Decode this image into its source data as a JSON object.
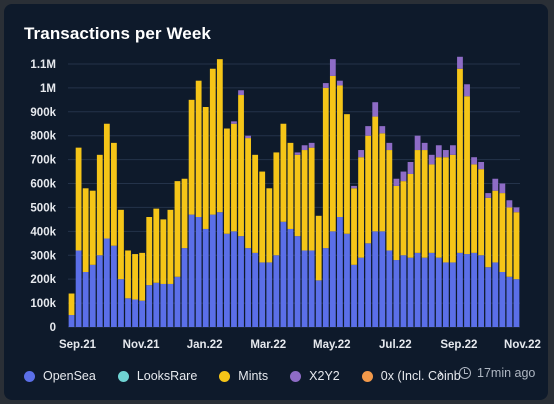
{
  "chart_data": {
    "type": "bar",
    "stacked": true,
    "title": "Transactions per Week",
    "xlabel": "",
    "ylabel": "",
    "ylim": [
      0,
      1150000
    ],
    "y_ticks": [
      {
        "value": 0,
        "label": "0"
      },
      {
        "value": 100000,
        "label": "100k"
      },
      {
        "value": 200000,
        "label": "200k"
      },
      {
        "value": 300000,
        "label": "300k"
      },
      {
        "value": 400000,
        "label": "400k"
      },
      {
        "value": 500000,
        "label": "500k"
      },
      {
        "value": 600000,
        "label": "600k"
      },
      {
        "value": 700000,
        "label": "700k"
      },
      {
        "value": 800000,
        "label": "800k"
      },
      {
        "value": 900000,
        "label": "900k"
      },
      {
        "value": 1000000,
        "label": "1M"
      },
      {
        "value": 1100000,
        "label": "1.1M"
      }
    ],
    "x_ticks": [
      {
        "index": 0,
        "label": "Sep.21"
      },
      {
        "index": 9,
        "label": "Nov.21"
      },
      {
        "index": 18,
        "label": "Jan.22"
      },
      {
        "index": 27,
        "label": "Mar.22"
      },
      {
        "index": 36,
        "label": "May.22"
      },
      {
        "index": 45,
        "label": "Jul.22"
      },
      {
        "index": 54,
        "label": "Sep.22"
      },
      {
        "index": 63,
        "label": "Nov.22"
      }
    ],
    "grid": true,
    "legend_position": "bottom",
    "series": [
      {
        "name": "OpenSea",
        "color": "#5b6fe8",
        "values": [
          50000,
          320000,
          230000,
          260000,
          300000,
          370000,
          340000,
          200000,
          120000,
          115000,
          110000,
          175000,
          185000,
          180000,
          180000,
          210000,
          330000,
          470000,
          460000,
          410000,
          470000,
          480000,
          390000,
          400000,
          380000,
          330000,
          310000,
          270000,
          270000,
          300000,
          440000,
          410000,
          380000,
          320000,
          320000,
          195000,
          330000,
          400000,
          460000,
          390000,
          260000,
          290000,
          350000,
          400000,
          400000,
          320000,
          280000,
          300000,
          290000,
          310000,
          290000,
          310000,
          290000,
          270000,
          270000,
          310000,
          305000,
          310000,
          300000,
          250000,
          270000,
          230000,
          210000,
          200000
        ]
      },
      {
        "name": "LooksRare",
        "color": "#6fd3d3",
        "values": [
          0,
          0,
          0,
          0,
          0,
          0,
          0,
          0,
          0,
          0,
          0,
          0,
          0,
          0,
          0,
          0,
          0,
          0,
          0,
          0,
          0,
          0,
          0,
          0,
          0,
          0,
          0,
          0,
          0,
          0,
          0,
          0,
          0,
          0,
          0,
          0,
          0,
          0,
          0,
          0,
          0,
          0,
          0,
          0,
          0,
          0,
          0,
          0,
          0,
          0,
          0,
          0,
          0,
          0,
          0,
          0,
          0,
          0,
          0,
          0,
          0,
          0,
          0,
          0
        ]
      },
      {
        "name": "Mints",
        "color": "#f5c518",
        "values": [
          90000,
          430000,
          350000,
          310000,
          420000,
          480000,
          430000,
          290000,
          200000,
          190000,
          200000,
          285000,
          310000,
          270000,
          310000,
          400000,
          290000,
          480000,
          570000,
          510000,
          610000,
          640000,
          440000,
          450000,
          590000,
          460000,
          410000,
          380000,
          310000,
          430000,
          410000,
          360000,
          340000,
          420000,
          430000,
          270000,
          670000,
          650000,
          550000,
          500000,
          320000,
          420000,
          450000,
          480000,
          410000,
          420000,
          310000,
          310000,
          350000,
          430000,
          450000,
          370000,
          420000,
          440000,
          450000,
          770000,
          660000,
          370000,
          360000,
          290000,
          300000,
          330000,
          290000,
          280000
        ]
      },
      {
        "name": "X2Y2",
        "color": "#8e6cc6",
        "values": [
          0,
          0,
          0,
          0,
          0,
          0,
          0,
          0,
          0,
          0,
          0,
          0,
          0,
          0,
          0,
          0,
          0,
          0,
          0,
          0,
          0,
          0,
          0,
          10000,
          20000,
          10000,
          0,
          0,
          0,
          0,
          0,
          0,
          10000,
          20000,
          20000,
          0,
          20000,
          70000,
          20000,
          0,
          10000,
          30000,
          40000,
          60000,
          30000,
          30000,
          30000,
          40000,
          50000,
          60000,
          30000,
          40000,
          50000,
          30000,
          40000,
          50000,
          50000,
          30000,
          30000,
          20000,
          50000,
          40000,
          30000,
          20000
        ]
      },
      {
        "name": "0x (Incl. Coinbase)",
        "color": "#f2994a",
        "values": [
          0,
          0,
          0,
          0,
          0,
          0,
          0,
          0,
          0,
          0,
          0,
          0,
          0,
          0,
          0,
          0,
          0,
          0,
          0,
          0,
          0,
          0,
          0,
          0,
          0,
          0,
          0,
          0,
          0,
          0,
          0,
          0,
          0,
          0,
          0,
          0,
          0,
          0,
          0,
          0,
          0,
          0,
          0,
          0,
          0,
          0,
          0,
          0,
          0,
          0,
          0,
          0,
          0,
          0,
          0,
          0,
          0,
          0,
          0,
          0,
          0,
          0,
          0,
          0
        ]
      }
    ]
  },
  "legend_items": [
    {
      "label": "OpenSea",
      "color": "#5b6fe8"
    },
    {
      "label": "LooksRare",
      "color": "#6fd3d3"
    },
    {
      "label": "Mints",
      "color": "#f5c518"
    },
    {
      "label": "X2Y2",
      "color": "#8e6cc6"
    },
    {
      "label": "0x (Incl. Coinbase)",
      "color": "#f2994a"
    }
  ],
  "updated": "17min ago",
  "icons": {
    "legend_next": "chevron-right-icon",
    "updated": "clock-icon"
  }
}
